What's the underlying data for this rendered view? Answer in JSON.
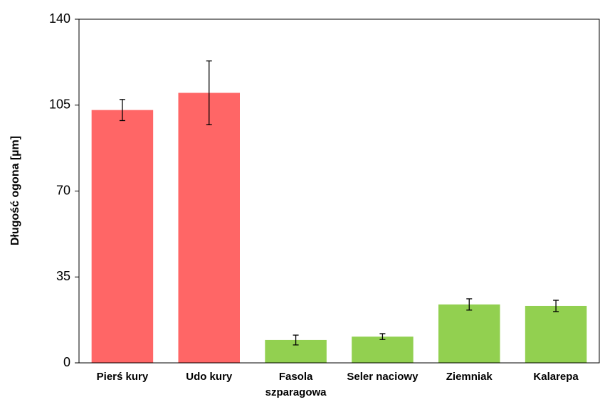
{
  "chart_data": {
    "type": "bar",
    "y_label": "Długość ogona [µm]",
    "categories": [
      "Pierś kury",
      "Udo kury",
      "Fasola szparagowa",
      "Seler naciowy",
      "Ziemniak",
      "Kalarepa"
    ],
    "values": [
      103,
      110,
      9.3,
      10.7,
      23.8,
      23.2
    ],
    "errors": [
      4.3,
      13,
      2,
      1.2,
      2.3,
      2.3
    ],
    "colors": [
      "#ff6666",
      "#ff6666",
      "#92d050",
      "#92d050",
      "#92d050",
      "#92d050"
    ],
    "ylim": [
      0,
      140
    ],
    "yticks": [
      0,
      35,
      70,
      105,
      140
    ],
    "grid": false
  }
}
